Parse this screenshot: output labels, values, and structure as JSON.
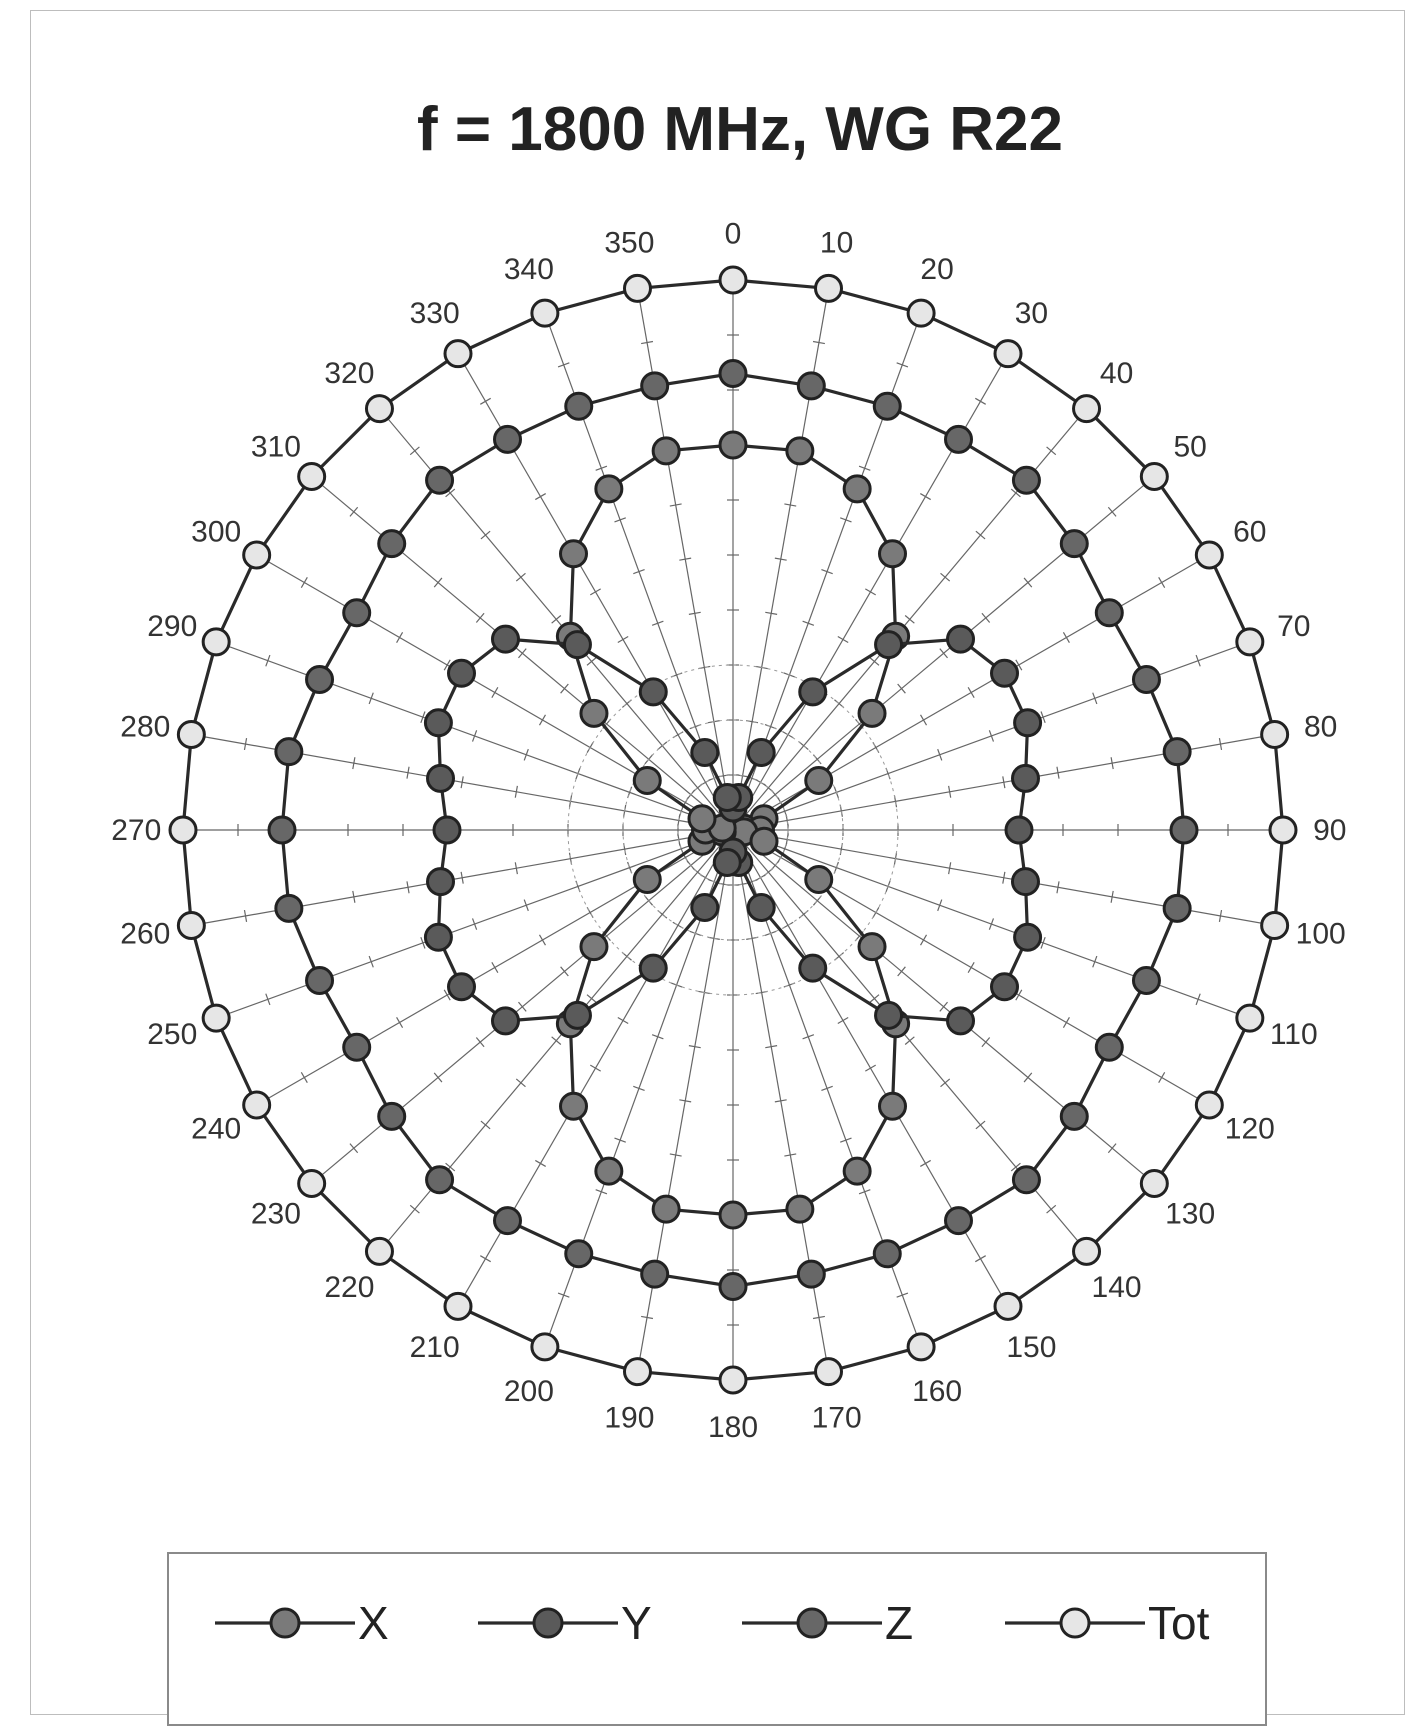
{
  "chart_data": {
    "type": "line",
    "subtype": "polar-radar",
    "title": "f = 1800 MHz, WG R22",
    "angles": [
      0,
      10,
      20,
      30,
      40,
      50,
      60,
      70,
      80,
      90,
      100,
      110,
      120,
      130,
      140,
      150,
      160,
      170,
      180,
      190,
      200,
      210,
      220,
      230,
      240,
      250,
      260,
      270,
      280,
      290,
      300,
      310,
      320,
      330,
      340,
      350
    ],
    "angle_labels": [
      "0",
      "10",
      "20",
      "30",
      "40",
      "50",
      "60",
      "70",
      "80",
      "90",
      "100",
      "110",
      "120",
      "130",
      "140",
      "150",
      "160",
      "170",
      "180",
      "190",
      "200",
      "210",
      "220",
      "230",
      "240",
      "250",
      "260",
      "270",
      "280",
      "290",
      "300",
      "310",
      "320",
      "330",
      "340",
      "350"
    ],
    "grid": true,
    "rlim": [
      0,
      1
    ],
    "legend": {
      "placement": "bottom"
    },
    "series": [
      {
        "name": "X",
        "fill": "#7a7a7a",
        "values": [
          0.7,
          0.7,
          0.66,
          0.58,
          0.46,
          0.33,
          0.18,
          0.06,
          0.02,
          0.05,
          0.02,
          0.06,
          0.18,
          0.33,
          0.46,
          0.58,
          0.66,
          0.7,
          0.7,
          0.7,
          0.66,
          0.58,
          0.46,
          0.33,
          0.18,
          0.06,
          0.02,
          0.05,
          0.02,
          0.06,
          0.18,
          0.33,
          0.46,
          0.58,
          0.66,
          0.7
        ]
      },
      {
        "name": "Y",
        "fill": "#5a5a5a",
        "values": [
          0.04,
          0.06,
          0.15,
          0.29,
          0.44,
          0.54,
          0.57,
          0.57,
          0.54,
          0.52,
          0.54,
          0.57,
          0.57,
          0.54,
          0.44,
          0.29,
          0.15,
          0.06,
          0.04,
          0.06,
          0.15,
          0.29,
          0.44,
          0.54,
          0.57,
          0.57,
          0.54,
          0.52,
          0.54,
          0.57,
          0.57,
          0.54,
          0.44,
          0.29,
          0.15,
          0.06
        ]
      },
      {
        "name": "Z",
        "fill": "#676767",
        "values": [
          0.83,
          0.82,
          0.82,
          0.82,
          0.83,
          0.81,
          0.79,
          0.8,
          0.82,
          0.82,
          0.82,
          0.8,
          0.79,
          0.81,
          0.83,
          0.82,
          0.82,
          0.82,
          0.83,
          0.82,
          0.82,
          0.82,
          0.83,
          0.81,
          0.79,
          0.8,
          0.82,
          0.82,
          0.82,
          0.8,
          0.79,
          0.81,
          0.83,
          0.82,
          0.82,
          0.82
        ]
      },
      {
        "name": "Tot",
        "fill": "#e6e6e6",
        "values": [
          1,
          1,
          1,
          1,
          1,
          1,
          1,
          1,
          1,
          1,
          1,
          1,
          1,
          1,
          1,
          1,
          1,
          1,
          1,
          1,
          1,
          1,
          1,
          1,
          1,
          1,
          1,
          1,
          1,
          1,
          1,
          1,
          1,
          1,
          1,
          1
        ]
      }
    ]
  }
}
